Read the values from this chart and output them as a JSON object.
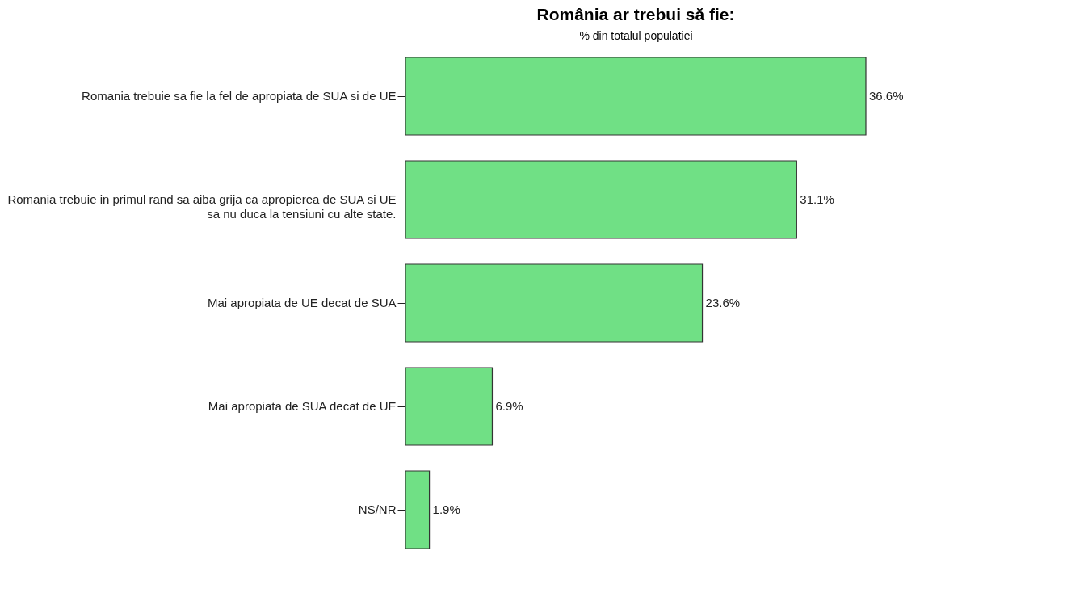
{
  "chart_data": {
    "type": "bar",
    "orientation": "horizontal",
    "title": "România ar trebui să fie:",
    "xlabel": "% din totalul populatiei",
    "categories": [
      "Romania trebuie sa fie la fel de apropiata de SUA si de UE",
      "Romania trebuie in primul rand sa aiba grija ca apropierea de SUA si UE\nsa nu duca la tensiuni cu alte state.",
      "Mai apropiata de UE decat de SUA",
      "Mai apropiata de SUA decat de UE",
      "NS/NR"
    ],
    "values": [
      36.6,
      31.1,
      23.6,
      6.9,
      1.9
    ],
    "color": "#70e085",
    "value_labels": [
      "36.6%",
      "31.1%",
      "23.6%",
      "6.9%",
      "1.9%"
    ],
    "grid": false
  }
}
